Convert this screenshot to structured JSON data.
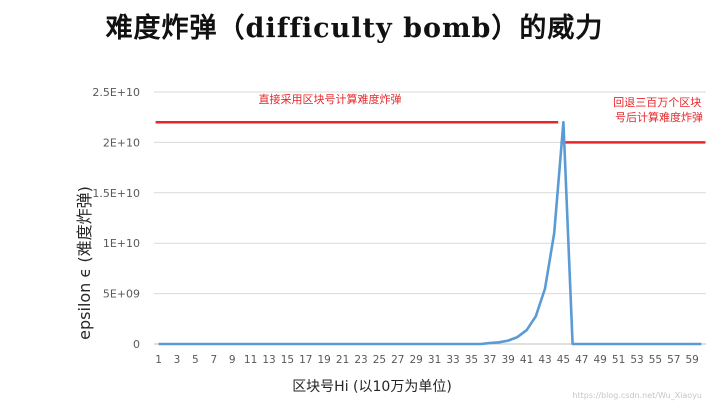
{
  "slide": {
    "title": "难度炸弹（difficulty bomb）的威力"
  },
  "chart_data": {
    "type": "line",
    "xlabel": "区块号Hi (以10万为单位)",
    "ylabel": "epsilon ϵ  (难度炸弹)",
    "ylim": [
      0,
      25000000000
    ],
    "yticks": [
      {
        "value": 0,
        "label": "0"
      },
      {
        "value": 5000000000,
        "label": "5E+09"
      },
      {
        "value": 10000000000,
        "label": "1E+10"
      },
      {
        "value": 15000000000,
        "label": "1.5E+10"
      },
      {
        "value": 20000000000,
        "label": "2E+10"
      },
      {
        "value": 25000000000,
        "label": "2.5E+10"
      }
    ],
    "grid": true,
    "x": [
      1,
      2,
      3,
      4,
      5,
      6,
      7,
      8,
      9,
      10,
      11,
      12,
      13,
      14,
      15,
      16,
      17,
      18,
      19,
      20,
      21,
      22,
      23,
      24,
      25,
      26,
      27,
      28,
      29,
      30,
      31,
      32,
      33,
      34,
      35,
      36,
      37,
      38,
      39,
      40,
      41,
      42,
      43,
      44,
      45,
      46,
      47,
      48,
      49,
      50,
      51,
      52,
      53,
      54,
      55,
      56,
      57,
      58,
      59,
      60
    ],
    "xtick_labels": [
      "1",
      "3",
      "5",
      "7",
      "9",
      "11",
      "13",
      "15",
      "17",
      "19",
      "21",
      "23",
      "25",
      "27",
      "29",
      "31",
      "33",
      "35",
      "37",
      "39",
      "41",
      "43",
      "45",
      "47",
      "49",
      "51",
      "53",
      "55",
      "57",
      "59"
    ],
    "series": [
      {
        "color": "#5b9bd5",
        "values": [
          0,
          0,
          0,
          0,
          0,
          0,
          0,
          0,
          0,
          0,
          0,
          0,
          0,
          0,
          0,
          0,
          0,
          0,
          0,
          0,
          0,
          0,
          0,
          0,
          0,
          0,
          0,
          0,
          0,
          0,
          0,
          0,
          0,
          0,
          0,
          0,
          85000000,
          170000000,
          340000000,
          680000000,
          1370000000,
          2750000000,
          5500000000,
          11000000000,
          22000000000,
          0,
          0,
          0,
          0,
          0,
          0,
          0,
          0,
          0,
          0,
          0,
          0,
          0,
          0,
          0
        ]
      }
    ],
    "reference_lines": [
      {
        "x_start": 1,
        "x_end": 44,
        "y": 22000000000,
        "color": "#e8262a"
      },
      {
        "x_start": 45,
        "x_end": 60,
        "y": 20000000000,
        "color": "#e8262a"
      }
    ],
    "annotations": [
      {
        "text": "直接采用区块号计算难度炸弹",
        "color": "#e8262a"
      },
      {
        "lines": [
          "回退三百万个区块",
          "号后计算难度炸弹"
        ],
        "color": "#e8262a"
      }
    ]
  },
  "watermark": "https://blog.csdn.net/Wu_Xiaoyu"
}
